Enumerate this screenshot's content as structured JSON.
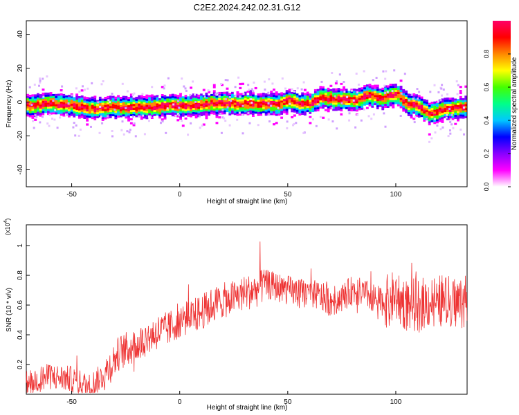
{
  "title": "C2E2.2024.242.02.31.G12",
  "chart_data": [
    {
      "type": "heatmap",
      "xlabel": "Height of straight line (km)",
      "ylabel": "Frequency (Hz)",
      "xlim": [
        -71,
        133
      ],
      "ylim": [
        -50,
        48
      ],
      "xticks": [
        -50,
        0,
        50,
        100
      ],
      "yticks": [
        -40,
        -20,
        0,
        20,
        40
      ],
      "colorbar": {
        "label": "Normalized spectral amplitude",
        "range": [
          0,
          1
        ],
        "ticks": [
          0.0,
          0.2,
          0.4,
          0.6,
          0.8
        ],
        "colors": [
          "#ffffff",
          "#ff00ff",
          "#8800ff",
          "#0000ff",
          "#00c8ff",
          "#00ff88",
          "#44ff00",
          "#ffff00",
          "#ff8800",
          "#ff0000",
          "#ff0066"
        ]
      },
      "ridge": {
        "x": [
          -71,
          -60,
          -50,
          -42,
          -35,
          -25,
          -15,
          -5,
          5,
          15,
          25,
          35,
          45,
          50,
          55,
          60,
          65,
          70,
          80,
          88,
          92,
          95,
          100,
          105,
          110,
          115,
          120,
          125,
          133
        ],
        "y": [
          -2,
          -1,
          -2,
          -4,
          -3,
          -3,
          -3,
          -2,
          -2,
          -1,
          -1,
          -1,
          -1,
          1,
          -1,
          -1,
          3,
          2,
          1,
          4,
          2,
          3,
          5,
          -1,
          -2,
          -7,
          -5,
          -4,
          -3
        ]
      }
    },
    {
      "type": "line",
      "xlabel": "Height of straight line (km)",
      "ylabel": "SNR (10 * v/v)",
      "ymultiplier": "(x10",
      "ymultiplier_exp": "4",
      "ymultiplier_close": ")",
      "xlim": [
        -71,
        133
      ],
      "ylim": [
        0,
        1.14
      ],
      "xticks": [
        -50,
        0,
        50,
        100
      ],
      "yticks": [
        0.2,
        0.4,
        0.6,
        0.8,
        1.0
      ],
      "color": "#ee3333",
      "trend": {
        "x": [
          -71,
          -60,
          -50,
          -42,
          -35,
          -28,
          -20,
          -15,
          -10,
          -5,
          0,
          5,
          10,
          15,
          20,
          25,
          30,
          35,
          40,
          45,
          50,
          55,
          60,
          65,
          70,
          75,
          80,
          85,
          90,
          95,
          100,
          105,
          110,
          115,
          120,
          125,
          133
        ],
        "y": [
          0.08,
          0.12,
          0.1,
          0.05,
          0.13,
          0.28,
          0.33,
          0.38,
          0.42,
          0.44,
          0.5,
          0.52,
          0.55,
          0.6,
          0.63,
          0.65,
          0.68,
          0.7,
          0.74,
          0.72,
          0.7,
          0.68,
          0.68,
          0.66,
          0.62,
          0.65,
          0.7,
          0.68,
          0.64,
          0.62,
          0.66,
          0.6,
          0.6,
          0.62,
          0.63,
          0.62,
          0.62
        ]
      }
    }
  ]
}
